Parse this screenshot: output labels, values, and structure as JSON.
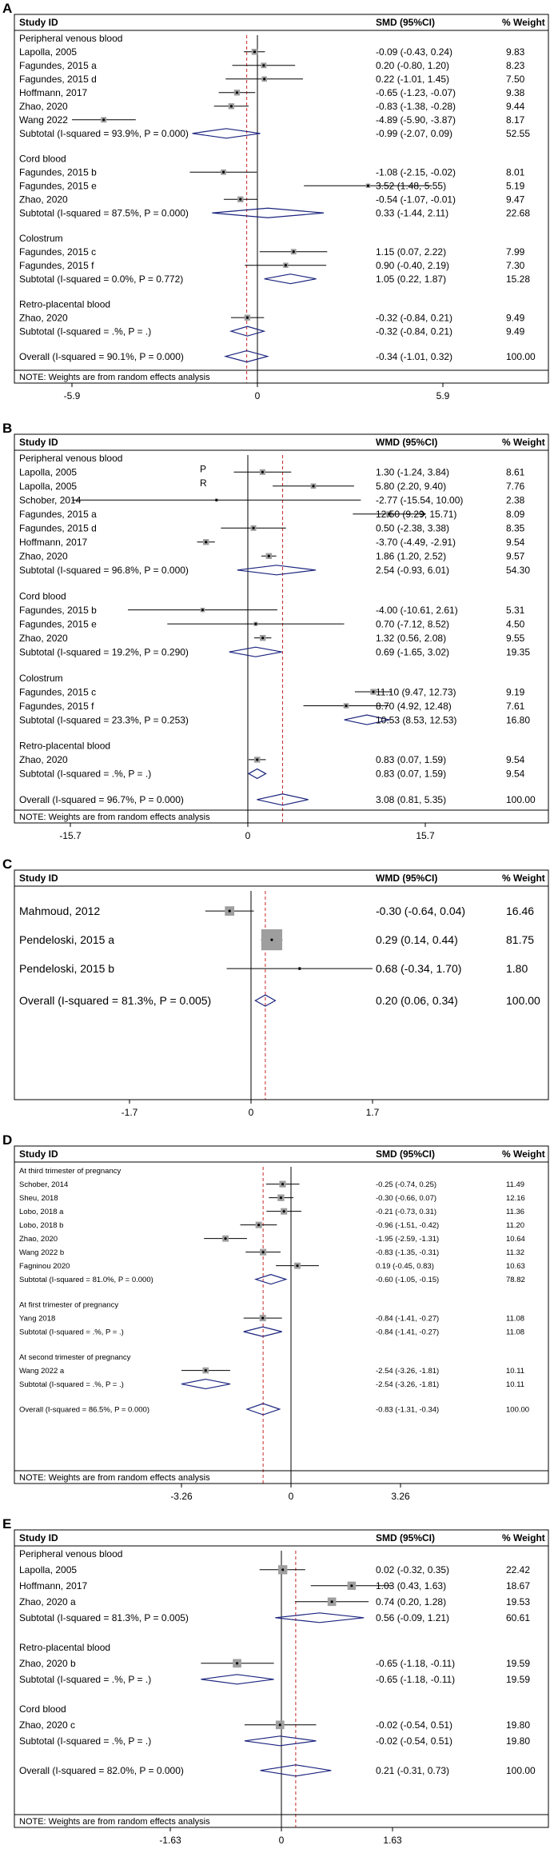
{
  "chart_data": [
    {
      "panel": "A",
      "type": "forest",
      "measure": "SMD",
      "headers": {
        "study": "Study ID",
        "effect": "SMD (95%CI)",
        "weight": "% Weight"
      },
      "xlim": [
        -5.9,
        5.9
      ],
      "xticks": [
        "-5.9",
        "0",
        "5.9"
      ],
      "overall_value": -0.34,
      "groups": [
        {
          "title": "Peripheral venous blood",
          "studies": [
            {
              "id": "Lapolla, 2005",
              "est": -0.09,
              "lo": -0.43,
              "hi": 0.24,
              "ci_text": "-0.09 (-0.43, 0.24)",
              "weight": "9.83"
            },
            {
              "id": "Fagundes, 2015 a",
              "est": 0.2,
              "lo": -0.8,
              "hi": 1.2,
              "ci_text": "0.20 (-0.80, 1.20)",
              "weight": "8.23"
            },
            {
              "id": "Fagundes, 2015 d",
              "est": 0.22,
              "lo": -1.01,
              "hi": 1.45,
              "ci_text": "0.22 (-1.01, 1.45)",
              "weight": "7.50"
            },
            {
              "id": "Hoffmann, 2017",
              "est": -0.65,
              "lo": -1.23,
              "hi": -0.07,
              "ci_text": "-0.65 (-1.23, -0.07)",
              "weight": "9.38"
            },
            {
              "id": "Zhao, 2020",
              "est": -0.83,
              "lo": -1.38,
              "hi": -0.28,
              "ci_text": "-0.83 (-1.38, -0.28)",
              "weight": "9.44"
            },
            {
              "id": "Wang 2022",
              "est": -4.89,
              "lo": -5.9,
              "hi": -3.87,
              "ci_text": "-4.89 (-5.90, -3.87)",
              "weight": "8.17"
            }
          ],
          "subtotal": {
            "label": "Subtotal  (I-squared = 93.9%, P = 0.000)",
            "est": -0.99,
            "lo": -2.07,
            "hi": 0.09,
            "ci_text": "-0.99 (-2.07, 0.09)",
            "weight": "52.55"
          }
        },
        {
          "title": "Cord blood",
          "studies": [
            {
              "id": "Fagundes, 2015 b",
              "est": -1.08,
              "lo": -2.15,
              "hi": -0.02,
              "ci_text": "-1.08 (-2.15, -0.02)",
              "weight": "8.01"
            },
            {
              "id": "Fagundes, 2015 e",
              "est": 3.52,
              "lo": 1.48,
              "hi": 5.55,
              "ci_text": "3.52 (1.48, 5.55)",
              "weight": "5.19"
            },
            {
              "id": "Zhao, 2020",
              "est": -0.54,
              "lo": -1.07,
              "hi": -0.01,
              "ci_text": "-0.54 (-1.07, -0.01)",
              "weight": "9.47"
            }
          ],
          "subtotal": {
            "label": "Subtotal  (I-squared = 87.5%, P = 0.000)",
            "est": 0.33,
            "lo": -1.44,
            "hi": 2.11,
            "ci_text": "0.33 (-1.44, 2.11)",
            "weight": "22.68"
          }
        },
        {
          "title": "Colostrum",
          "studies": [
            {
              "id": "Fagundes, 2015 c",
              "est": 1.15,
              "lo": 0.07,
              "hi": 2.22,
              "ci_text": "1.15 (0.07, 2.22)",
              "weight": "7.99"
            },
            {
              "id": "Fagundes, 2015 f",
              "est": 0.9,
              "lo": -0.4,
              "hi": 2.19,
              "ci_text": "0.90 (-0.40, 2.19)",
              "weight": "7.30"
            }
          ],
          "subtotal": {
            "label": "Subtotal  (I-squared = 0.0%, P = 0.772)",
            "est": 1.05,
            "lo": 0.22,
            "hi": 1.87,
            "ci_text": "1.05 (0.22, 1.87)",
            "weight": "15.28"
          }
        },
        {
          "title": "Retro-placental blood",
          "studies": [
            {
              "id": "Zhao, 2020",
              "est": -0.32,
              "lo": -0.84,
              "hi": 0.21,
              "ci_text": "-0.32 (-0.84, 0.21)",
              "weight": "9.49"
            }
          ],
          "subtotal": {
            "label": "Subtotal  (I-squared = .%, P = .)",
            "est": -0.32,
            "lo": -0.84,
            "hi": 0.21,
            "ci_text": "-0.32 (-0.84, 0.21)",
            "weight": "9.49"
          }
        }
      ],
      "overall": {
        "label": "Overall  (I-squared = 90.1%, P = 0.000)",
        "est": -0.34,
        "lo": -1.01,
        "hi": 0.32,
        "ci_text": "-0.34 (-1.01, 0.32)",
        "weight": "100.00"
      },
      "note": "NOTE: Weights are from random effects analysis"
    },
    {
      "panel": "B",
      "type": "forest",
      "measure": "WMD",
      "headers": {
        "study": "Study ID",
        "effect": "WMD (95%CI)",
        "weight": "% Weight"
      },
      "xlim": [
        -15.7,
        15.7
      ],
      "xticks": [
        "-15.7",
        "0",
        "15.7"
      ],
      "overall_value": 3.08,
      "groups": [
        {
          "title": "Peripheral venous blood",
          "studies": [
            {
              "id": "Lapolla, 2005",
              "tag": "P",
              "est": 1.3,
              "lo": -1.24,
              "hi": 3.84,
              "ci_text": "1.30 (-1.24, 3.84)",
              "weight": "8.61"
            },
            {
              "id": "Lapolla, 2005",
              "tag": "R",
              "est": 5.8,
              "lo": 2.2,
              "hi": 9.4,
              "ci_text": "5.80 (2.20, 9.40)",
              "weight": "7.76"
            },
            {
              "id": "Schober, 2014",
              "est": -2.77,
              "lo": -15.54,
              "hi": 10.0,
              "ci_text": "-2.77 (-15.54, 10.00)",
              "weight": "2.38"
            },
            {
              "id": "Fagundes, 2015 a",
              "est": 12.5,
              "lo": 9.29,
              "hi": 15.71,
              "ci_text": "12.50 (9.29, 15.71)",
              "weight": "8.09"
            },
            {
              "id": "Fagundes, 2015 d",
              "est": 0.5,
              "lo": -2.38,
              "hi": 3.38,
              "ci_text": "0.50 (-2.38, 3.38)",
              "weight": "8.35"
            },
            {
              "id": "Hoffmann, 2017",
              "est": -3.7,
              "lo": -4.49,
              "hi": -2.91,
              "ci_text": "-3.70 (-4.49, -2.91)",
              "weight": "9.54"
            },
            {
              "id": "Zhao, 2020",
              "est": 1.86,
              "lo": 1.2,
              "hi": 2.52,
              "ci_text": "1.86 (1.20, 2.52)",
              "weight": "9.57"
            }
          ],
          "subtotal": {
            "label": "Subtotal  (I-squared = 96.8%, P = 0.000)",
            "est": 2.54,
            "lo": -0.93,
            "hi": 6.01,
            "ci_text": "2.54 (-0.93, 6.01)",
            "weight": "54.30"
          }
        },
        {
          "title": "Cord blood",
          "studies": [
            {
              "id": "Fagundes, 2015 b",
              "est": -4.0,
              "lo": -10.61,
              "hi": 2.61,
              "ci_text": "-4.00 (-10.61, 2.61)",
              "weight": "5.31"
            },
            {
              "id": "Fagundes, 2015 e",
              "est": 0.7,
              "lo": -7.12,
              "hi": 8.52,
              "ci_text": "0.70 (-7.12, 8.52)",
              "weight": "4.50"
            },
            {
              "id": "Zhao, 2020",
              "est": 1.32,
              "lo": 0.56,
              "hi": 2.08,
              "ci_text": "1.32 (0.56, 2.08)",
              "weight": "9.55"
            }
          ],
          "subtotal": {
            "label": "Subtotal  (I-squared = 19.2%, P = 0.290)",
            "est": 0.69,
            "lo": -1.65,
            "hi": 3.02,
            "ci_text": "0.69 (-1.65, 3.02)",
            "weight": "19.35"
          }
        },
        {
          "title": "Colostrum",
          "studies": [
            {
              "id": "Fagundes, 2015 c",
              "est": 11.1,
              "lo": 9.47,
              "hi": 12.73,
              "ci_text": "11.10 (9.47, 12.73)",
              "weight": "9.19"
            },
            {
              "id": "Fagundes, 2015 f",
              "est": 8.7,
              "lo": 4.92,
              "hi": 12.48,
              "ci_text": "8.70 (4.92, 12.48)",
              "weight": "7.61"
            }
          ],
          "subtotal": {
            "label": "Subtotal  (I-squared = 23.3%, P = 0.253)",
            "est": 10.53,
            "lo": 8.53,
            "hi": 12.53,
            "ci_text": "10.53 (8.53, 12.53)",
            "weight": "16.80"
          }
        },
        {
          "title": "Retro-placental blood",
          "studies": [
            {
              "id": "Zhao, 2020",
              "est": 0.83,
              "lo": 0.07,
              "hi": 1.59,
              "ci_text": "0.83 (0.07, 1.59)",
              "weight": "9.54"
            }
          ],
          "subtotal": {
            "label": "Subtotal  (I-squared = .%, P = .)",
            "est": 0.83,
            "lo": 0.07,
            "hi": 1.59,
            "ci_text": "0.83 (0.07, 1.59)",
            "weight": "9.54"
          }
        }
      ],
      "overall": {
        "label": "Overall  (I-squared = 96.7%, P = 0.000)",
        "est": 3.08,
        "lo": 0.81,
        "hi": 5.35,
        "ci_text": "3.08 (0.81, 5.35)",
        "weight": "100.00"
      },
      "note": "NOTE: Weights are from random effects analysis"
    },
    {
      "panel": "C",
      "type": "forest",
      "measure": "WMD",
      "headers": {
        "study": "Study ID",
        "effect": "WMD (95%CI)",
        "weight": "% Weight"
      },
      "xlim": [
        -1.7,
        1.7
      ],
      "xticks": [
        "-1.7",
        "0",
        "1.7"
      ],
      "overall_value": 0.2,
      "groups": [
        {
          "title": "",
          "studies": [
            {
              "id": "Mahmoud, 2012",
              "est": -0.3,
              "lo": -0.64,
              "hi": 0.04,
              "ci_text": "-0.30 (-0.64, 0.04)",
              "weight": "16.46"
            },
            {
              "id": "Pendeloski, 2015 a",
              "est": 0.29,
              "lo": 0.14,
              "hi": 0.44,
              "ci_text": "0.29 (0.14, 0.44)",
              "weight": "81.75"
            },
            {
              "id": "Pendeloski, 2015 b",
              "est": 0.68,
              "lo": -0.34,
              "hi": 1.7,
              "ci_text": "0.68 (-0.34, 1.70)",
              "weight": "1.80"
            }
          ]
        }
      ],
      "overall": {
        "label": "Overall  (I-squared = 81.3%, P = 0.005)",
        "est": 0.2,
        "lo": 0.06,
        "hi": 0.34,
        "ci_text": "0.20 (0.06, 0.34)",
        "weight": "100.00"
      },
      "note": ""
    },
    {
      "panel": "D",
      "type": "forest",
      "measure": "SMD",
      "headers": {
        "study": "Study ID",
        "effect": "SMD (95%CI)",
        "weight": "% Weight"
      },
      "xlim": [
        -3.26,
        3.26
      ],
      "xticks": [
        "-3.26",
        "0",
        "3.26"
      ],
      "overall_value": -0.83,
      "groups": [
        {
          "title": "At third trimester of pregnancy",
          "studies": [
            {
              "id": "Schober, 2014",
              "est": -0.25,
              "lo": -0.74,
              "hi": 0.25,
              "ci_text": "-0.25 (-0.74, 0.25)",
              "weight": "11.49"
            },
            {
              "id": "Sheu, 2018",
              "est": -0.3,
              "lo": -0.66,
              "hi": 0.07,
              "ci_text": "-0.30 (-0.66, 0.07)",
              "weight": "12.16"
            },
            {
              "id": "Lobo, 2018 a",
              "est": -0.21,
              "lo": -0.73,
              "hi": 0.31,
              "ci_text": "-0.21 (-0.73, 0.31)",
              "weight": "11.36"
            },
            {
              "id": "Lobo, 2018 b",
              "est": -0.96,
              "lo": -1.51,
              "hi": -0.42,
              "ci_text": "-0.96 (-1.51, -0.42)",
              "weight": "11.20"
            },
            {
              "id": "Zhao, 2020",
              "est": -1.95,
              "lo": -2.59,
              "hi": -1.31,
              "ci_text": "-1.95 (-2.59, -1.31)",
              "weight": "10.64"
            },
            {
              "id": "Wang 2022 b",
              "est": -0.83,
              "lo": -1.35,
              "hi": -0.31,
              "ci_text": "-0.83 (-1.35, -0.31)",
              "weight": "11.32"
            },
            {
              "id": "Fagninou 2020",
              "est": 0.19,
              "lo": -0.45,
              "hi": 0.83,
              "ci_text": "0.19 (-0.45, 0.83)",
              "weight": "10.63"
            }
          ],
          "subtotal": {
            "label": "Subtotal  (I-squared = 81.0%, P = 0.000)",
            "est": -0.6,
            "lo": -1.05,
            "hi": -0.15,
            "ci_text": "-0.60 (-1.05, -0.15)",
            "weight": "78.82"
          }
        },
        {
          "title": "At first trimester of pregnancy",
          "studies": [
            {
              "id": "Yang 2018",
              "est": -0.84,
              "lo": -1.41,
              "hi": -0.27,
              "ci_text": "-0.84 (-1.41, -0.27)",
              "weight": "11.08"
            }
          ],
          "subtotal": {
            "label": "Subtotal  (I-squared = .%, P = .)",
            "est": -0.84,
            "lo": -1.41,
            "hi": -0.27,
            "ci_text": "-0.84 (-1.41, -0.27)",
            "weight": "11.08"
          }
        },
        {
          "title": "At second trimester of pregnancy",
          "studies": [
            {
              "id": "Wang 2022 a",
              "est": -2.54,
              "lo": -3.26,
              "hi": -1.81,
              "ci_text": "-2.54 (-3.26, -1.81)",
              "weight": "10.11"
            }
          ],
          "subtotal": {
            "label": "Subtotal  (I-squared = .%, P = .)",
            "est": -2.54,
            "lo": -3.26,
            "hi": -1.81,
            "ci_text": "-2.54 (-3.26, -1.81)",
            "weight": "10.11"
          }
        }
      ],
      "overall": {
        "label": "Overall  (I-squared = 86.5%, P = 0.000)",
        "est": -0.83,
        "lo": -1.31,
        "hi": -0.34,
        "ci_text": "-0.83 (-1.31, -0.34)",
        "weight": "100.00"
      },
      "note": "NOTE: Weights are from random effects analysis"
    },
    {
      "panel": "E",
      "type": "forest",
      "measure": "SMD",
      "headers": {
        "study": "Study ID",
        "effect": "SMD (95%CI)",
        "weight": "% Weight"
      },
      "xlim": [
        -1.63,
        1.63
      ],
      "xticks": [
        "-1.63",
        "0",
        "1.63"
      ],
      "overall_value": 0.21,
      "groups": [
        {
          "title": "Peripheral venous blood",
          "studies": [
            {
              "id": "Lapolla, 2005",
              "est": 0.02,
              "lo": -0.32,
              "hi": 0.35,
              "ci_text": "0.02 (-0.32, 0.35)",
              "weight": "22.42"
            },
            {
              "id": "Hoffmann, 2017",
              "est": 1.03,
              "lo": 0.43,
              "hi": 1.63,
              "ci_text": "1.03 (0.43, 1.63)",
              "weight": "18.67"
            },
            {
              "id": "Zhao, 2020 a",
              "est": 0.74,
              "lo": 0.2,
              "hi": 1.28,
              "ci_text": "0.74 (0.20, 1.28)",
              "weight": "19.53"
            }
          ],
          "subtotal": {
            "label": "Subtotal  (I-squared = 81.3%, P = 0.005)",
            "est": 0.56,
            "lo": -0.09,
            "hi": 1.21,
            "ci_text": "0.56 (-0.09, 1.21)",
            "weight": "60.61"
          }
        },
        {
          "title": "Retro-placental blood",
          "studies": [
            {
              "id": "Zhao, 2020 b",
              "est": -0.65,
              "lo": -1.18,
              "hi": -0.11,
              "ci_text": "-0.65 (-1.18, -0.11)",
              "weight": "19.59"
            }
          ],
          "subtotal": {
            "label": "Subtotal  (I-squared = .%, P = .)",
            "est": -0.65,
            "lo": -1.18,
            "hi": -0.11,
            "ci_text": "-0.65 (-1.18, -0.11)",
            "weight": "19.59"
          }
        },
        {
          "title": "Cord blood",
          "studies": [
            {
              "id": "Zhao, 2020 c",
              "est": -0.02,
              "lo": -0.54,
              "hi": 0.51,
              "ci_text": "-0.02 (-0.54, 0.51)",
              "weight": "19.80"
            }
          ],
          "subtotal": {
            "label": "Subtotal  (I-squared = .%, P = .)",
            "est": -0.02,
            "lo": -0.54,
            "hi": 0.51,
            "ci_text": "-0.02 (-0.54, 0.51)",
            "weight": "19.80"
          }
        }
      ],
      "overall": {
        "label": "Overall  (I-squared = 82.0%, P = 0.000)",
        "est": 0.21,
        "lo": -0.31,
        "hi": 0.73,
        "ci_text": "0.21 (-0.31, 0.73)",
        "weight": "100.00"
      },
      "note": "NOTE: Weights are from random effects analysis"
    }
  ],
  "style": {
    "diamond_color": "#1a237e",
    "refline_color": "#c62828",
    "box_color": "#9e9e9e",
    "ink": "#000000"
  }
}
